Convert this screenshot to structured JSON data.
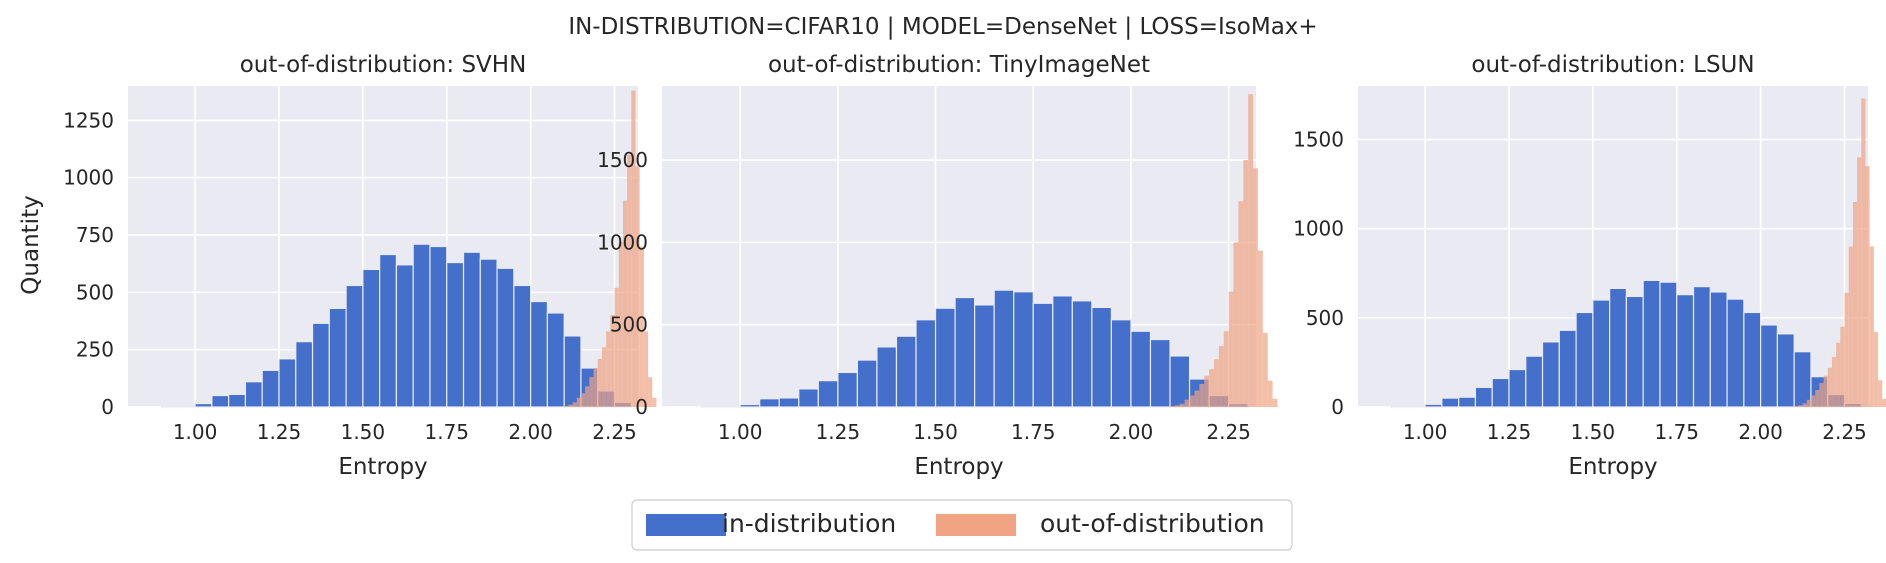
{
  "figure": {
    "suptitle": "IN-DISTRIBUTION=CIFAR10 | MODEL=DenseNet | LOSS=IsoMax+",
    "ylabel": "Quantity",
    "colors": {
      "in": "#4470cc",
      "out": "#f0a483",
      "background": "#eaeaf2",
      "grid": "#ffffff"
    }
  },
  "legend": {
    "entries": [
      {
        "label": "in-distribution",
        "color": "#4470cc"
      },
      {
        "label": "out-of-distribution",
        "color": "#f0a483"
      }
    ],
    "placement": "bottom-center"
  },
  "chart_data": [
    {
      "type": "histogram",
      "title": "out-of-distribution: SVHN",
      "xlabel": "Entropy",
      "ylabel": "Quantity",
      "xlim": [
        0.8,
        2.32
      ],
      "ylim": [
        0,
        1400
      ],
      "xticks": [
        "1.00",
        "1.25",
        "1.50",
        "1.75",
        "2.00",
        "2.25"
      ],
      "yticks": [
        "0",
        "250",
        "500",
        "750",
        "1000",
        "1250"
      ],
      "series": [
        {
          "name": "in-distribution",
          "bin_start": 0.9,
          "bin_width": 0.05,
          "values": [
            2,
            5,
            15,
            50,
            55,
            110,
            160,
            210,
            285,
            365,
            430,
            530,
            600,
            665,
            620,
            710,
            700,
            630,
            675,
            645,
            605,
            530,
            460,
            410,
            310,
            170,
            70,
            20
          ]
        },
        {
          "name": "out-of-distribution",
          "bin_start": 2.1,
          "bin_width": 0.0125,
          "values": [
            5,
            10,
            20,
            40,
            60,
            90,
            130,
            170,
            210,
            260,
            330,
            400,
            520,
            720,
            900,
            1100,
            1380,
            1050,
            700,
            330,
            130,
            40
          ]
        }
      ]
    },
    {
      "type": "histogram",
      "title": "out-of-distribution: TinyImageNet",
      "xlabel": "Entropy",
      "ylabel": "",
      "xlim": [
        0.8,
        2.32
      ],
      "ylim": [
        0,
        1950
      ],
      "xticks": [
        "1.00",
        "1.25",
        "1.50",
        "1.75",
        "2.00",
        "2.25"
      ],
      "yticks": [
        "0",
        "500",
        "1000",
        "1500"
      ],
      "series": [
        {
          "name": "in-distribution",
          "bin_start": 0.9,
          "bin_width": 0.05,
          "values": [
            2,
            5,
            15,
            50,
            55,
            110,
            160,
            210,
            285,
            365,
            430,
            530,
            600,
            665,
            620,
            710,
            700,
            630,
            675,
            645,
            605,
            530,
            460,
            410,
            310,
            170,
            70,
            20
          ]
        },
        {
          "name": "out-of-distribution",
          "bin_start": 2.1,
          "bin_width": 0.0125,
          "values": [
            5,
            10,
            20,
            45,
            70,
            100,
            140,
            190,
            230,
            290,
            370,
            460,
            700,
            1000,
            1250,
            1500,
            1900,
            1450,
            950,
            450,
            160,
            50
          ]
        }
      ]
    },
    {
      "type": "histogram",
      "title": "out-of-distribution: LSUN",
      "xlabel": "Entropy",
      "ylabel": "",
      "xlim": [
        0.8,
        2.32
      ],
      "ylim": [
        0,
        1800
      ],
      "xticks": [
        "1.00",
        "1.25",
        "1.50",
        "1.75",
        "2.00",
        "2.25"
      ],
      "yticks": [
        "0",
        "500",
        "1000",
        "1500"
      ],
      "series": [
        {
          "name": "in-distribution",
          "bin_start": 0.9,
          "bin_width": 0.05,
          "values": [
            2,
            5,
            15,
            50,
            55,
            110,
            160,
            210,
            285,
            365,
            430,
            530,
            600,
            665,
            620,
            710,
            700,
            630,
            675,
            645,
            605,
            530,
            460,
            410,
            310,
            170,
            70,
            20
          ]
        },
        {
          "name": "out-of-distribution",
          "bin_start": 2.1,
          "bin_width": 0.0125,
          "values": [
            5,
            10,
            20,
            40,
            65,
            95,
            135,
            175,
            220,
            280,
            360,
            450,
            640,
            900,
            1150,
            1400,
            1730,
            1350,
            900,
            420,
            150,
            45
          ]
        }
      ]
    }
  ]
}
